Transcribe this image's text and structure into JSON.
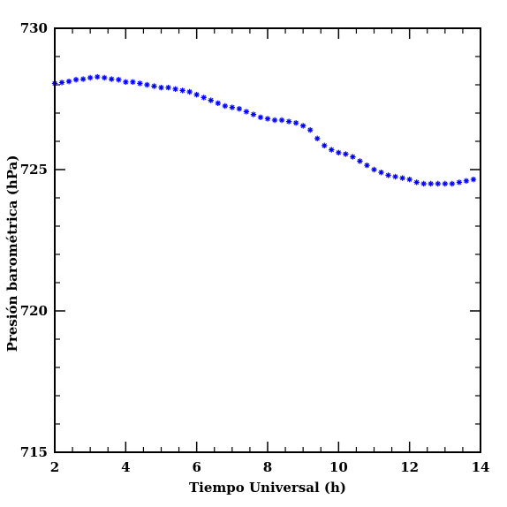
{
  "chart_data": {
    "type": "scatter",
    "title": "",
    "xlabel": "Tiempo Universal (h)",
    "ylabel": "Presión barométrica (hPa)",
    "xlim": [
      2,
      14
    ],
    "ylim": [
      715,
      730
    ],
    "xticks": [
      2,
      4,
      6,
      8,
      10,
      12,
      14
    ],
    "yticks": [
      715,
      720,
      725,
      730
    ],
    "x_minor_step": 0.5,
    "y_minor_step": 1,
    "grid": false,
    "legend": "none",
    "marker": "asterisk",
    "color": "#0000ff",
    "series": [
      {
        "x": [
          2.0,
          2.2,
          2.4,
          2.6,
          2.8,
          3.0,
          3.2,
          3.4,
          3.6,
          3.8,
          4.0,
          4.2,
          4.4,
          4.6,
          4.8,
          5.0,
          5.2,
          5.4,
          5.6,
          5.8,
          6.0,
          6.2,
          6.4,
          6.6,
          6.8,
          7.0,
          7.2,
          7.4,
          7.6,
          7.8,
          8.0,
          8.2,
          8.4,
          8.6,
          8.8,
          9.0,
          9.2,
          9.4,
          9.6,
          9.8,
          10.0,
          10.2,
          10.4,
          10.6,
          10.8,
          11.0,
          11.2,
          11.4,
          11.6,
          11.8,
          12.0,
          12.2,
          12.4,
          12.6,
          12.8,
          13.0,
          13.2,
          13.4,
          13.6,
          13.8
        ],
        "y": [
          728.05,
          728.08,
          728.12,
          728.18,
          728.2,
          728.25,
          728.28,
          728.25,
          728.2,
          728.18,
          728.1,
          728.1,
          728.05,
          728.0,
          727.95,
          727.9,
          727.9,
          727.85,
          727.8,
          727.75,
          727.65,
          727.55,
          727.45,
          727.35,
          727.25,
          727.2,
          727.15,
          727.05,
          726.95,
          726.85,
          726.8,
          726.75,
          726.75,
          726.7,
          726.65,
          726.55,
          726.4,
          726.1,
          725.85,
          725.7,
          725.6,
          725.55,
          725.45,
          725.3,
          725.15,
          725.0,
          724.9,
          724.8,
          724.75,
          724.7,
          724.65,
          724.55,
          724.5,
          724.5,
          724.5,
          724.5,
          724.5,
          724.55,
          724.6,
          724.65
        ]
      }
    ]
  }
}
